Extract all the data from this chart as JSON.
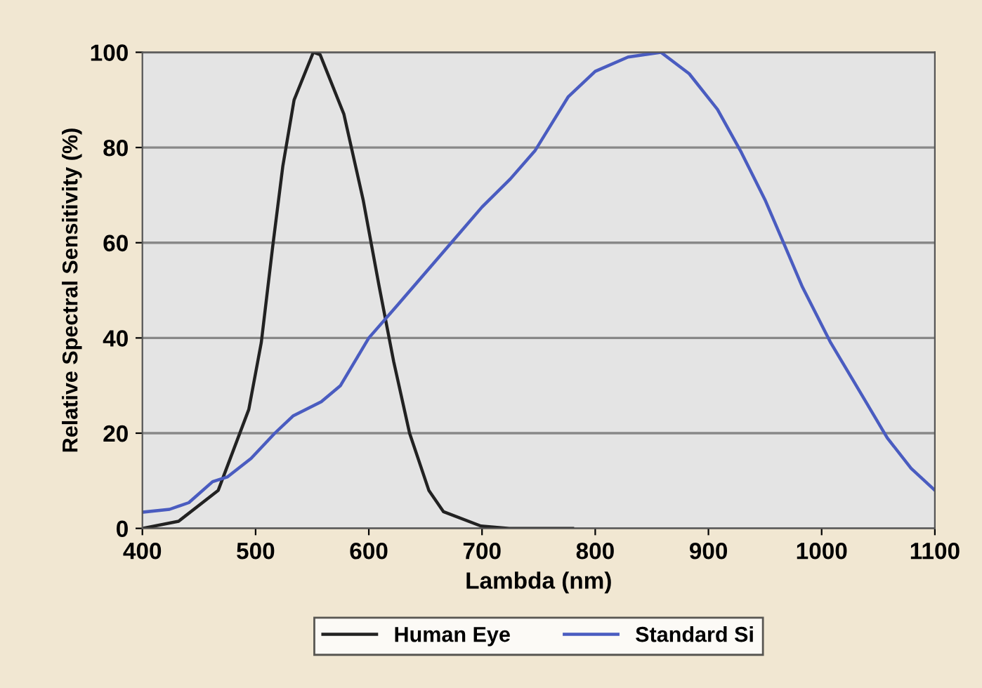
{
  "chart_data": {
    "type": "line",
    "xlabel": "Lambda (nm)",
    "ylabel": "Relative Spectral Sensitivity (%)",
    "xlim": [
      400,
      1100
    ],
    "xticks": [
      400,
      500,
      600,
      700,
      800,
      900,
      1000,
      1100
    ],
    "ylim": [
      0,
      100
    ],
    "yticks": [
      0,
      20,
      40,
      60,
      80,
      100
    ],
    "grid": "y",
    "legend": "bottom",
    "marker": "none",
    "line_style": "solid",
    "series": [
      {
        "name": "Human Eye",
        "color": "#222222",
        "x": [
          400,
          432,
          467,
          494,
          505,
          515,
          524,
          534,
          551,
          557,
          578,
          595,
          609,
          622,
          636,
          653,
          666,
          699,
          724,
          780
        ],
        "values": [
          0,
          1.5,
          8,
          25,
          39,
          59,
          76,
          90,
          100,
          99.5,
          87,
          69,
          51,
          35,
          20,
          8,
          3.5,
          0.5,
          0,
          0
        ]
      },
      {
        "name": "Standard Si",
        "color": "#4a5cc0",
        "x": [
          400,
          424,
          441,
          462,
          475,
          496,
          517,
          533,
          558,
          575,
          600,
          625,
          650,
          675,
          700,
          725,
          747,
          776,
          800,
          829,
          858,
          883,
          908,
          929,
          950,
          967,
          983,
          1008,
          1033,
          1058,
          1079,
          1100
        ],
        "values": [
          3.4,
          4,
          5.4,
          9.8,
          10.8,
          14.7,
          20,
          23.6,
          26.6,
          30,
          40,
          46.8,
          53.7,
          60.6,
          67.5,
          73.4,
          79.4,
          90.6,
          96,
          99,
          100,
          95.5,
          88,
          79,
          69,
          59.6,
          50.7,
          39,
          29,
          19,
          12.6,
          8
        ]
      }
    ]
  }
}
